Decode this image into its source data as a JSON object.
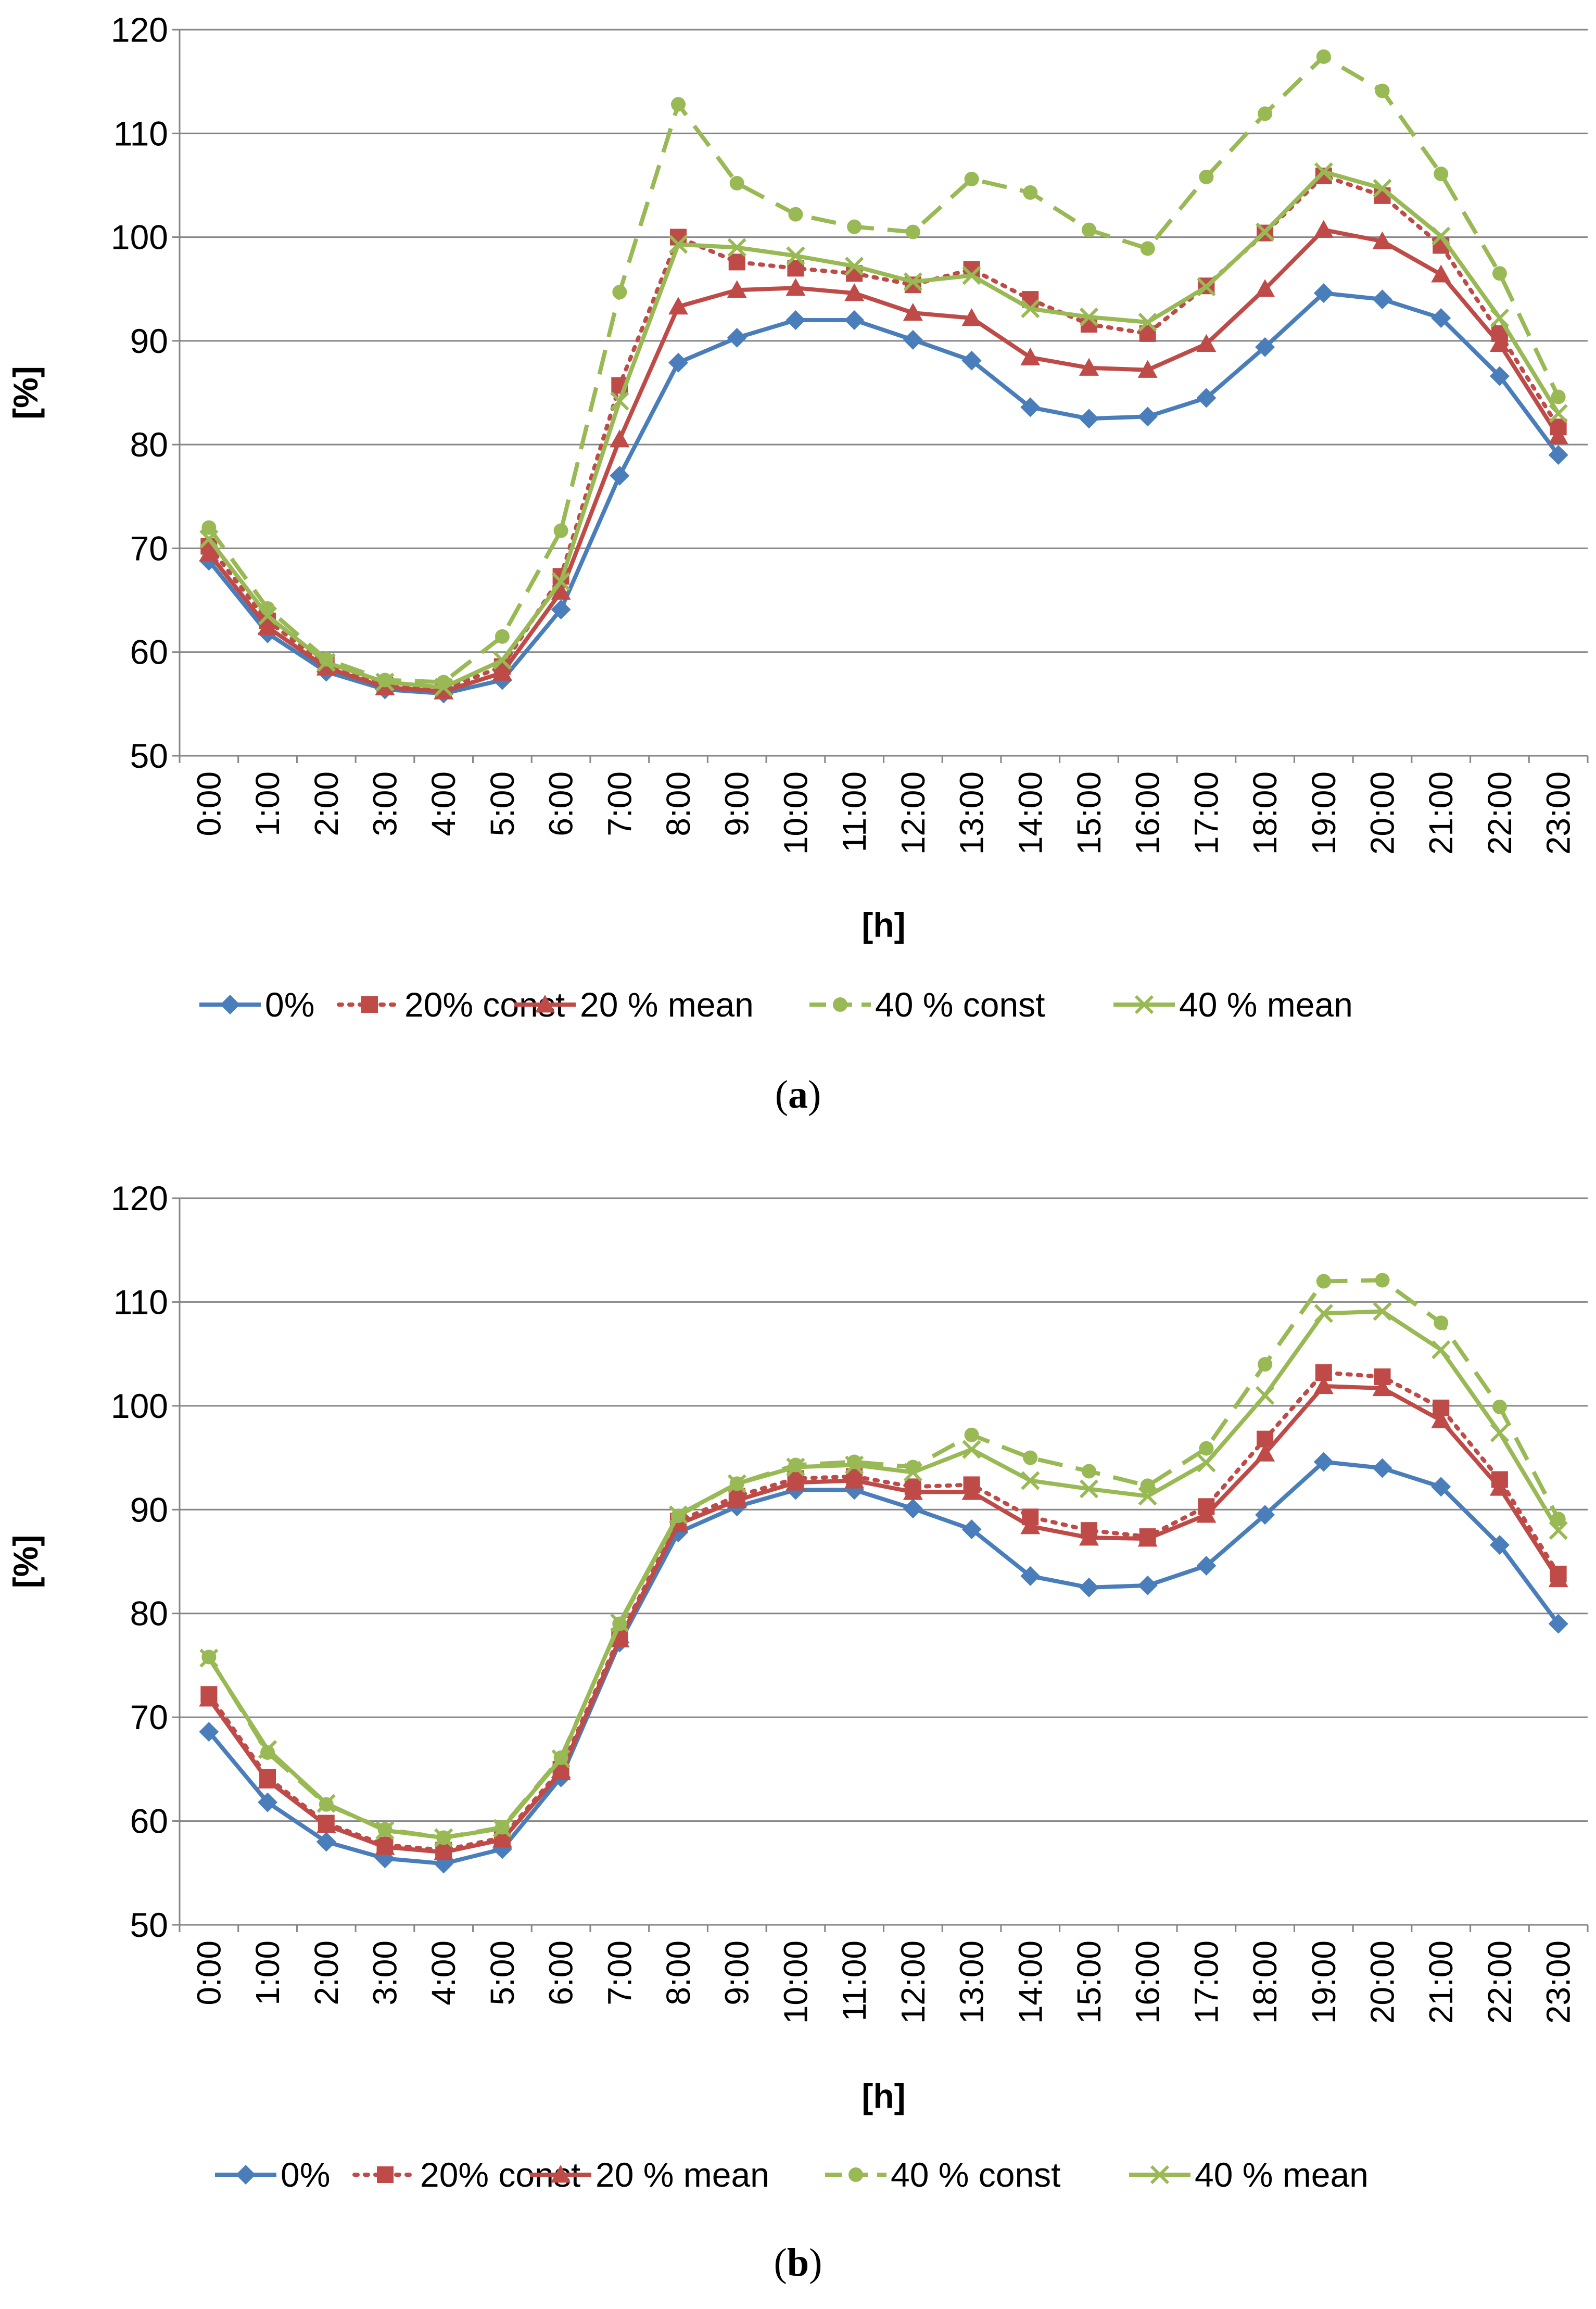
{
  "chart_data": [
    {
      "type": "line",
      "caption_letter": "a",
      "ylabel": "[%]",
      "xlabel": "[h]",
      "ylim": [
        50,
        120
      ],
      "y_ticks": [
        "50",
        "60",
        "70",
        "80",
        "90",
        "100",
        "110",
        "120"
      ],
      "categories": [
        "0:00",
        "1:00",
        "2:00",
        "3:00",
        "4:00",
        "5:00",
        "6:00",
        "7:00",
        "8:00",
        "9:00",
        "10:00",
        "11:00",
        "12:00",
        "13:00",
        "14:00",
        "15:00",
        "16:00",
        "17:00",
        "18:00",
        "19:00",
        "20:00",
        "21:00",
        "22:00",
        "23:00"
      ],
      "grid": true,
      "legend_position": "bottom",
      "series": [
        {
          "name": "0%",
          "color": "#4a7ebb",
          "dash": "solid",
          "marker": "diamond",
          "values": [
            68.8,
            61.8,
            58.1,
            56.4,
            56.0,
            57.3,
            64.1,
            77.0,
            87.9,
            90.3,
            92.0,
            92.0,
            90.1,
            88.1,
            83.6,
            82.5,
            82.7,
            84.5,
            89.4,
            94.6,
            94.0,
            92.2,
            86.6,
            79.0
          ]
        },
        {
          "name": "20% const",
          "color": "#be4b48",
          "dash": "dotted",
          "marker": "square",
          "values": [
            70.2,
            63.0,
            58.8,
            56.8,
            56.4,
            58.6,
            67.3,
            85.7,
            100.0,
            97.6,
            97.0,
            96.5,
            95.4,
            96.9,
            94.0,
            91.6,
            90.7,
            95.3,
            100.4,
            105.9,
            104.0,
            99.2,
            90.7,
            81.7
          ]
        },
        {
          "name": "20 % mean",
          "color": "#be4b48",
          "dash": "solid",
          "marker": "triangle",
          "values": [
            69.5,
            62.4,
            58.5,
            56.6,
            56.2,
            58.0,
            65.8,
            80.5,
            93.3,
            94.9,
            95.1,
            94.6,
            92.7,
            92.2,
            88.4,
            87.4,
            87.2,
            89.7,
            95.0,
            100.7,
            99.6,
            96.4,
            89.7,
            80.8
          ]
        },
        {
          "name": "40 % const",
          "color": "#98b954",
          "dash": "dashed",
          "marker": "circle",
          "values": [
            72.0,
            64.2,
            59.3,
            57.3,
            57.1,
            61.5,
            71.7,
            94.7,
            112.8,
            105.2,
            102.2,
            101.0,
            100.5,
            105.6,
            104.3,
            100.7,
            98.9,
            105.8,
            111.9,
            117.4,
            114.1,
            106.1,
            96.5,
            84.6
          ]
        },
        {
          "name": "40 % mean",
          "color": "#98b954",
          "dash": "solid",
          "marker": "x",
          "values": [
            70.9,
            63.5,
            59.0,
            57.1,
            56.6,
            59.2,
            66.8,
            84.2,
            99.3,
            99.0,
            98.2,
            97.2,
            95.7,
            96.3,
            93.1,
            92.3,
            91.8,
            95.2,
            100.5,
            106.3,
            104.7,
            100.1,
            92.2,
            83.0
          ]
        }
      ]
    },
    {
      "type": "line",
      "caption_letter": "b",
      "ylabel": "[%]",
      "xlabel": "[h]",
      "ylim": [
        50,
        120
      ],
      "y_ticks": [
        "50",
        "60",
        "70",
        "80",
        "90",
        "100",
        "110",
        "120"
      ],
      "categories": [
        "0:00",
        "1:00",
        "2:00",
        "3:00",
        "4:00",
        "5:00",
        "6:00",
        "7:00",
        "8:00",
        "9:00",
        "10:00",
        "11:00",
        "12:00",
        "13:00",
        "14:00",
        "15:00",
        "16:00",
        "17:00",
        "18:00",
        "19:00",
        "20:00",
        "21:00",
        "22:00",
        "23:00"
      ],
      "grid": true,
      "legend_position": "bottom",
      "series": [
        {
          "name": "0%",
          "color": "#4a7ebb",
          "dash": "solid",
          "marker": "diamond",
          "values": [
            68.6,
            61.8,
            58.0,
            56.4,
            55.9,
            57.3,
            64.2,
            77.2,
            87.8,
            90.3,
            91.9,
            91.9,
            90.1,
            88.1,
            83.6,
            82.5,
            82.7,
            84.6,
            89.5,
            94.6,
            94.0,
            92.2,
            86.6,
            79.0
          ]
        },
        {
          "name": "20% const",
          "color": "#be4b48",
          "dash": "dotted",
          "marker": "square",
          "values": [
            72.2,
            64.2,
            59.8,
            57.7,
            57.2,
            58.4,
            65.0,
            77.8,
            88.9,
            91.3,
            93.0,
            93.2,
            92.2,
            92.4,
            89.3,
            88.0,
            87.4,
            90.3,
            96.8,
            103.2,
            102.8,
            99.8,
            92.9,
            83.8
          ]
        },
        {
          "name": "20 % mean",
          "color": "#be4b48",
          "dash": "solid",
          "marker": "triangle",
          "values": [
            71.8,
            63.9,
            59.6,
            57.5,
            57.0,
            58.2,
            64.7,
            77.5,
            88.6,
            90.9,
            92.6,
            92.8,
            91.7,
            91.7,
            88.4,
            87.3,
            87.2,
            89.5,
            95.4,
            101.9,
            101.7,
            98.6,
            92.1,
            83.3
          ]
        },
        {
          "name": "40 % const",
          "color": "#98b954",
          "dash": "dashed",
          "marker": "circle",
          "values": [
            75.8,
            66.6,
            61.6,
            59.2,
            58.4,
            59.4,
            66.1,
            79.0,
            89.4,
            92.5,
            94.3,
            94.6,
            94.1,
            97.2,
            95.0,
            93.7,
            92.3,
            95.9,
            104.0,
            112.0,
            112.1,
            108.0,
            99.9,
            89.1
          ]
        },
        {
          "name": "40 % mean",
          "color": "#98b954",
          "dash": "solid",
          "marker": "x",
          "values": [
            75.7,
            66.9,
            61.7,
            59.1,
            58.4,
            59.3,
            66.0,
            79.1,
            89.5,
            92.5,
            94.1,
            94.3,
            93.6,
            95.8,
            92.8,
            92.0,
            91.3,
            94.5,
            101.0,
            108.9,
            109.1,
            105.4,
            97.4,
            88.0
          ]
        }
      ]
    }
  ]
}
